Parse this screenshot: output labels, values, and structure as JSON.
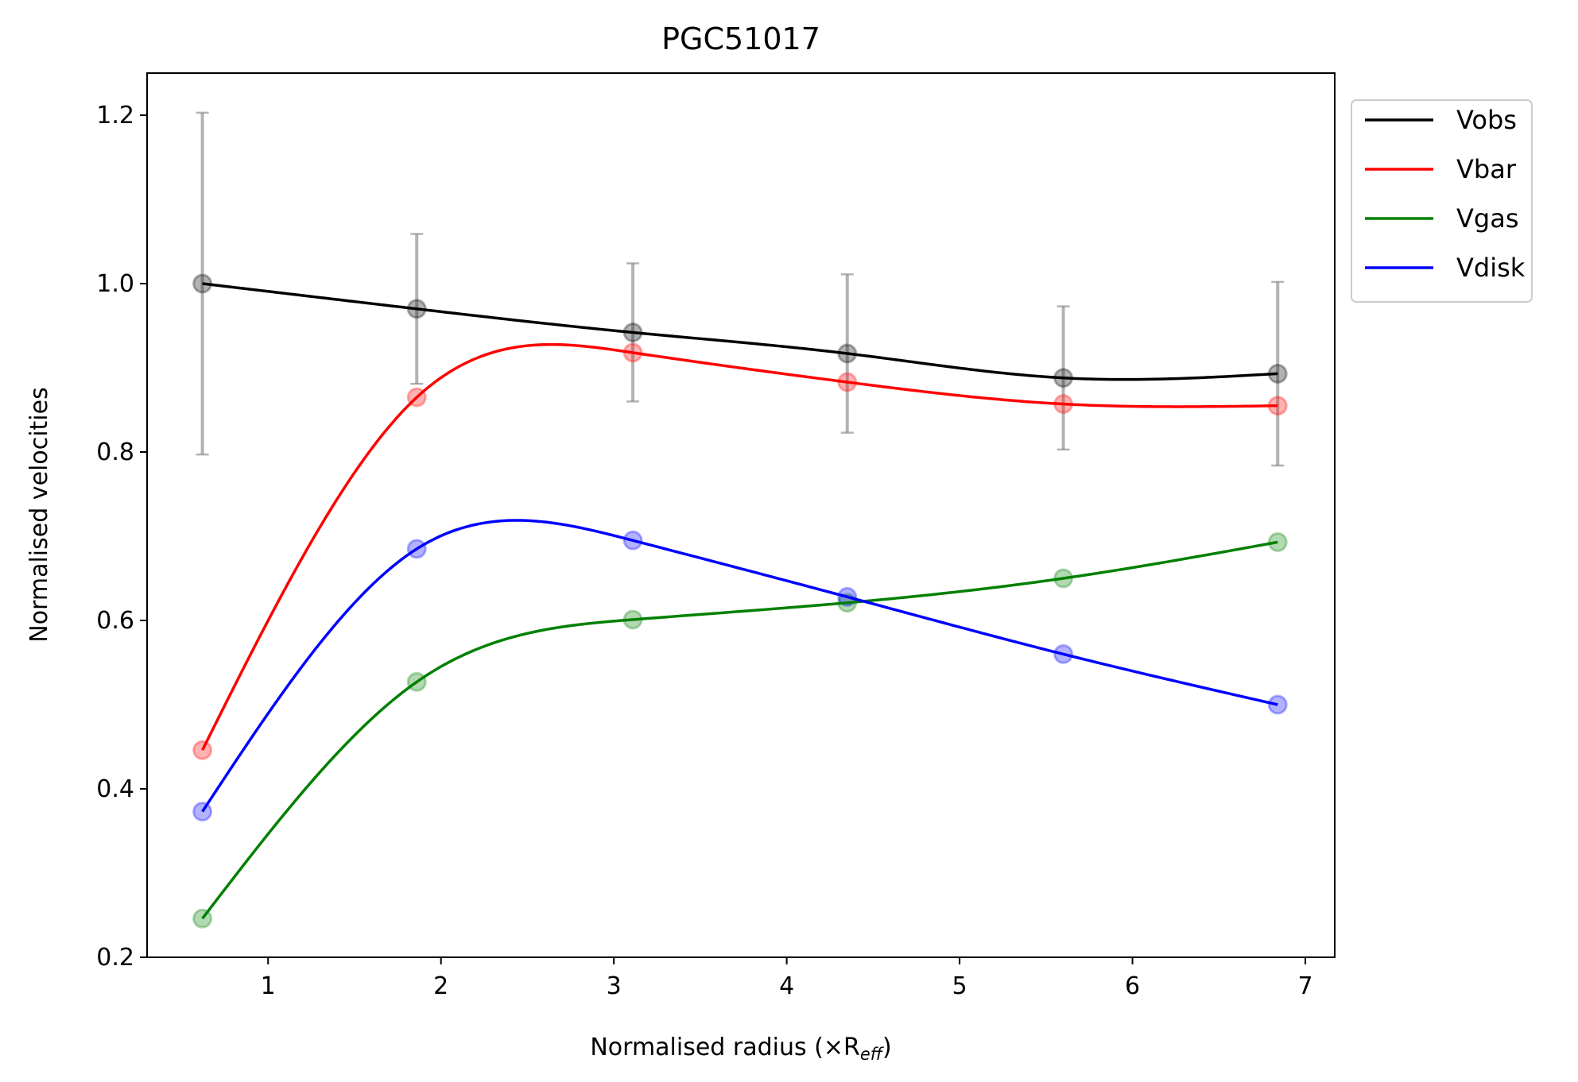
{
  "chart_data": {
    "type": "line",
    "title": "PGC51017",
    "xlabel": "Normalised radius (×R",
    "xlabel_subscript": "eff",
    "xlabel_close": ")",
    "ylabel": "Normalised velocities",
    "xlim": [
      0.3,
      7.17
    ],
    "ylim": [
      0.2,
      1.25
    ],
    "xticks": [
      1,
      2,
      3,
      4,
      5,
      6,
      7
    ],
    "yticks": [
      0.2,
      0.4,
      0.6,
      0.8,
      1.0,
      1.2
    ],
    "xtick_labels": [
      "1",
      "2",
      "3",
      "4",
      "5",
      "6",
      "7"
    ],
    "ytick_labels": [
      "0.2",
      "0.4",
      "0.6",
      "0.8",
      "1.0",
      "1.2"
    ],
    "x": [
      0.62,
      1.86,
      3.11,
      4.35,
      5.6,
      6.84
    ],
    "series": [
      {
        "name": "Vobs",
        "color": "#000000",
        "values": [
          1.0,
          0.97,
          0.942,
          0.917,
          0.888,
          0.893
        ],
        "errors": [
          0.203,
          0.089,
          0.082,
          0.094,
          0.085,
          0.109
        ]
      },
      {
        "name": "Vbar",
        "color": "#ff0000",
        "values": [
          0.446,
          0.865,
          0.918,
          0.883,
          0.857,
          0.855
        ]
      },
      {
        "name": "Vgas",
        "color": "#008000",
        "values": [
          0.246,
          0.527,
          0.601,
          0.621,
          0.65,
          0.693
        ]
      },
      {
        "name": "Vdisk",
        "color": "#0000ff",
        "values": [
          0.373,
          0.685,
          0.695,
          0.628,
          0.56,
          0.5
        ]
      }
    ],
    "legend_position": "outside-upper-right",
    "grid": false
  }
}
